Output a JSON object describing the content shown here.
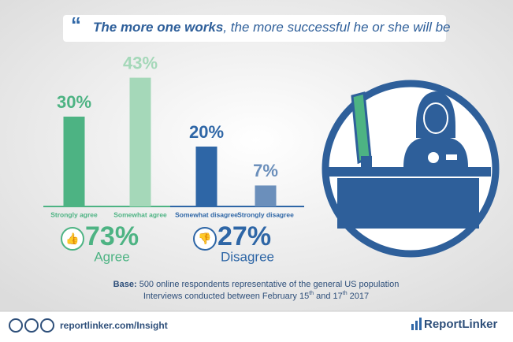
{
  "quote": {
    "bold": "The more one works",
    "rest": ", the more successful he or she will be"
  },
  "chart_data": {
    "type": "bar",
    "categories": [
      "Strongly agree",
      "Somewhat agree",
      "Somewhat disagree",
      "Strongly disagree"
    ],
    "values": [
      30,
      43,
      20,
      7
    ],
    "value_labels": [
      "30%",
      "43%",
      "20%",
      "7%"
    ],
    "colors": [
      "#4db383",
      "#a5d8b9",
      "#2e66a6",
      "#6b8fbb"
    ]
  },
  "summary": [
    {
      "value_label": "73%",
      "label": "Agree"
    },
    {
      "value_label": "27%",
      "label": "Disagree"
    }
  ],
  "base": {
    "bold": "Base:",
    "text": " 500 online respondents representative of the general US population",
    "line2": [
      "Interviews conducted between February 15",
      "th",
      " and 17",
      "th",
      " 2017"
    ]
  },
  "footer": {
    "link": "reportlinker.com/Insight",
    "brand": "ReportLinker"
  }
}
